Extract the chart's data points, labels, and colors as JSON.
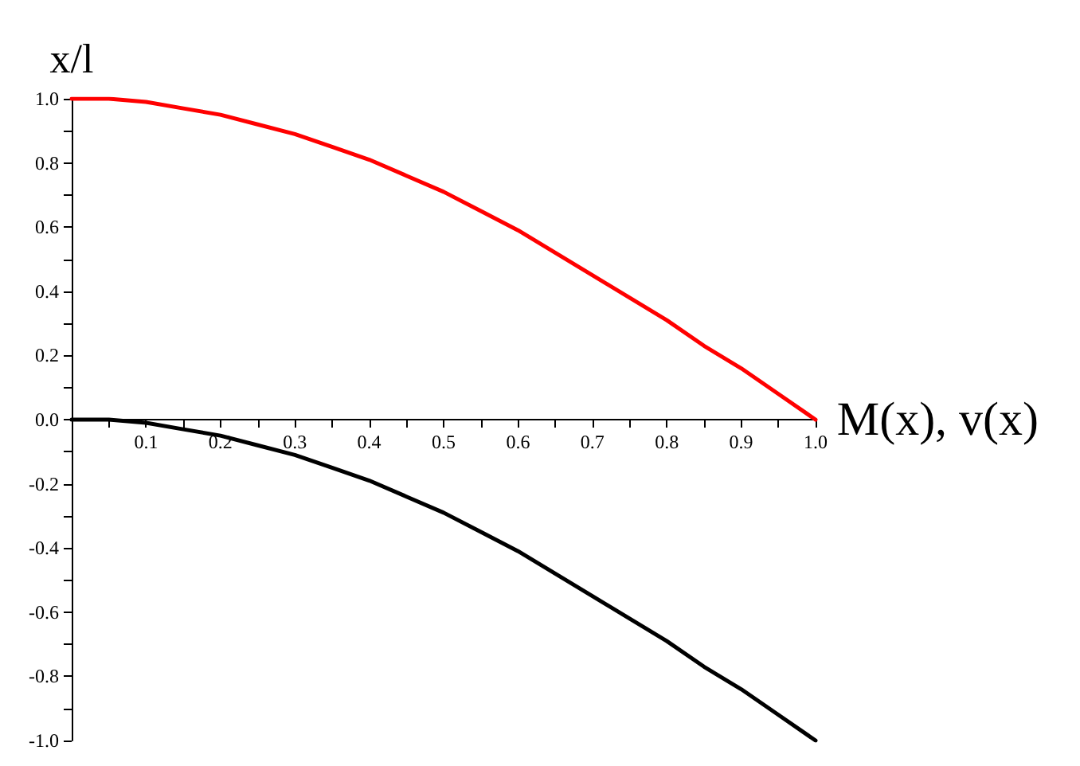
{
  "chart_data": {
    "type": "line",
    "xlabel": "M(x), v(x)",
    "ylabel": "x/l",
    "x": [
      0,
      0.05,
      0.1,
      0.15,
      0.2,
      0.25,
      0.3,
      0.35,
      0.4,
      0.45,
      0.5,
      0.55,
      0.6,
      0.65,
      0.7,
      0.75,
      0.8,
      0.85,
      0.9,
      0.95,
      1
    ],
    "series": [
      {
        "color": "#ff0000",
        "values": [
          1,
          1,
          0.99,
          0.97,
          0.95,
          0.92,
          0.89,
          0.85,
          0.81,
          0.76,
          0.71,
          0.65,
          0.59,
          0.52,
          0.45,
          0.38,
          0.31,
          0.23,
          0.16,
          0.08,
          0
        ]
      },
      {
        "color": "#000000",
        "values": [
          0,
          0,
          -0.01,
          -0.03,
          -0.05,
          -0.08,
          -0.11,
          -0.15,
          -0.19,
          -0.24,
          -0.29,
          -0.35,
          -0.41,
          -0.48,
          -0.55,
          -0.62,
          -0.69,
          -0.77,
          -0.84,
          -0.92,
          -1
        ]
      }
    ],
    "xlim": [
      0,
      1
    ],
    "xticks": [
      {
        "value": 0.05,
        "label": null
      },
      {
        "value": 0.1,
        "label": "0.1"
      },
      {
        "value": 0.15,
        "label": null
      },
      {
        "value": 0.2,
        "label": "0.2"
      },
      {
        "value": 0.25,
        "label": null
      },
      {
        "value": 0.3,
        "label": "0.3"
      },
      {
        "value": 0.35,
        "label": null
      },
      {
        "value": 0.4,
        "label": "0.4"
      },
      {
        "value": 0.45,
        "label": null
      },
      {
        "value": 0.5,
        "label": "0.5"
      },
      {
        "value": 0.55,
        "label": null
      },
      {
        "value": 0.6,
        "label": "0.6"
      },
      {
        "value": 0.65,
        "label": null
      },
      {
        "value": 0.7,
        "label": "0.7"
      },
      {
        "value": 0.75,
        "label": null
      },
      {
        "value": 0.8,
        "label": "0.8"
      },
      {
        "value": 0.85,
        "label": null
      },
      {
        "value": 0.9,
        "label": "0.9"
      },
      {
        "value": 0.95,
        "label": null
      },
      {
        "value": 1,
        "label": "1.0"
      }
    ],
    "ylim": [
      -1,
      1
    ],
    "yticks": [
      {
        "value": -1,
        "label": "-1.0"
      },
      {
        "value": -0.9,
        "label": null
      },
      {
        "value": -0.8,
        "label": "-0.8"
      },
      {
        "value": -0.7,
        "label": null
      },
      {
        "value": -0.6,
        "label": "-0.6"
      },
      {
        "value": -0.5,
        "label": null
      },
      {
        "value": -0.4,
        "label": "-0.4"
      },
      {
        "value": -0.3,
        "label": null
      },
      {
        "value": -0.2,
        "label": "-0.2"
      },
      {
        "value": -0.1,
        "label": null
      },
      {
        "value": 0,
        "label": "0.0"
      },
      {
        "value": 0.1,
        "label": null
      },
      {
        "value": 0.2,
        "label": "0.2"
      },
      {
        "value": 0.3,
        "label": null
      },
      {
        "value": 0.4,
        "label": "0.4"
      },
      {
        "value": 0.5,
        "label": null
      },
      {
        "value": 0.6,
        "label": "0.6"
      },
      {
        "value": 0.7,
        "label": null
      },
      {
        "value": 0.8,
        "label": "0.8"
      },
      {
        "value": 0.9,
        "label": null
      },
      {
        "value": 1,
        "label": "1.0"
      }
    ],
    "grid": false,
    "marker": "none",
    "line_style": "solid"
  }
}
